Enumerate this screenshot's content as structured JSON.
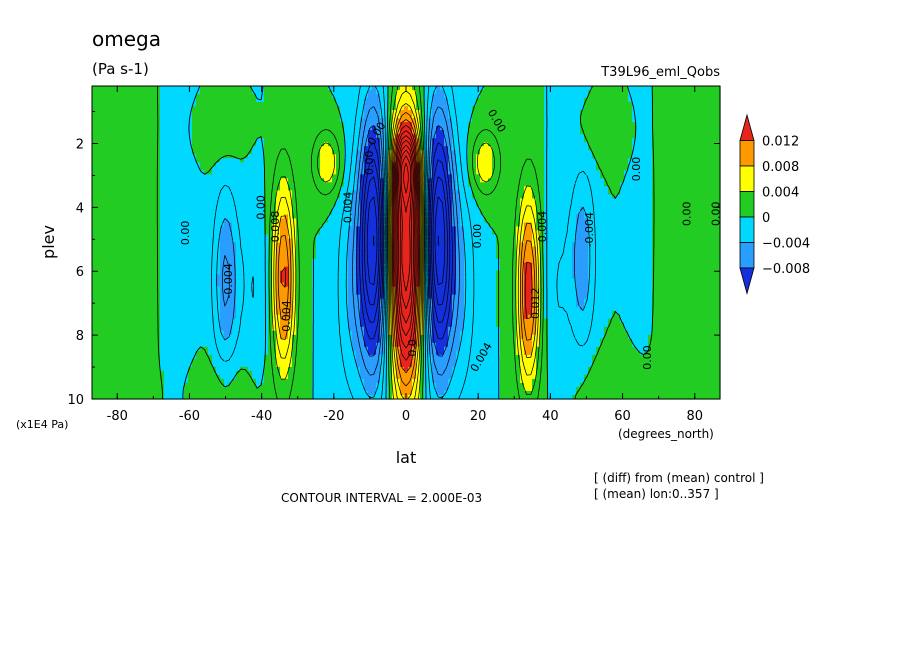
{
  "chart_data": {
    "type": "heatmap",
    "title": "omega",
    "units": "(Pa s-1)",
    "dataset": "T39L96_eml_Qobs",
    "xlabel": "lat",
    "xunits": "(degrees_north)",
    "ylabel": "plev",
    "yunits": "(x1E4 Pa)",
    "xlim": [
      -87,
      87
    ],
    "ylim": [
      0.2,
      10
    ],
    "y_inverted": true,
    "x_ticks": [
      "-80",
      "-60",
      "-40",
      "-20",
      "0",
      "20",
      "40",
      "60",
      "80"
    ],
    "y_ticks": [
      "2",
      "4",
      "6",
      "8",
      "10"
    ],
    "contour_interval_text": "CONTOUR INTERVAL = 2.000E-03",
    "contour_interval": 0.002,
    "notes": [
      "[ (diff) from (mean) control ]",
      "[ (mean) lon:0..357 ]"
    ],
    "colorbar": {
      "labels": [
        "0.012",
        "0.008",
        "0.004",
        "0",
        "−0.004",
        "−0.008"
      ],
      "bands": [
        {
          "min": 0.012,
          "max": null,
          "color": "#e8251c"
        },
        {
          "min": 0.008,
          "max": 0.012,
          "color": "#ff9900"
        },
        {
          "min": 0.004,
          "max": 0.008,
          "color": "#ffff00"
        },
        {
          "min": 0.0,
          "max": 0.004,
          "color": "#22cc22"
        },
        {
          "min": -0.004,
          "max": 0.0,
          "color": "#00d8ff"
        },
        {
          "min": -0.008,
          "max": -0.004,
          "color": "#2a9eff"
        },
        {
          "min": null,
          "max": -0.008,
          "color": "#1430dc"
        }
      ]
    },
    "contour_labels": [
      {
        "lat": -61,
        "plev": 4.8,
        "text": "0.00",
        "rot": -90
      },
      {
        "lat": -49,
        "plev": 6.3,
        "text": "-0.004",
        "rot": -90
      },
      {
        "lat": -40,
        "plev": 4.0,
        "text": "0.00",
        "rot": -90
      },
      {
        "lat": -36,
        "plev": 4.6,
        "text": "0.008",
        "rot": -90
      },
      {
        "lat": -33,
        "plev": 7.4,
        "text": "0.004",
        "rot": -90
      },
      {
        "lat": -16,
        "plev": 4.0,
        "text": "0.004",
        "rot": -90
      },
      {
        "lat": -10,
        "plev": 2.6,
        "text": "0.00",
        "rot": -90
      },
      {
        "lat": -8,
        "plev": 1.7,
        "text": "0.00",
        "rot": -60
      },
      {
        "lat": 2,
        "plev": 8.4,
        "text": "0.0",
        "rot": -90
      },
      {
        "lat": 20,
        "plev": 4.9,
        "text": "0.00",
        "rot": -90
      },
      {
        "lat": 21,
        "plev": 8.7,
        "text": "0.004",
        "rot": -60
      },
      {
        "lat": 25,
        "plev": 1.3,
        "text": "0.00",
        "rot": 60
      },
      {
        "lat": 38,
        "plev": 4.6,
        "text": "0.004",
        "rot": -90
      },
      {
        "lat": 36,
        "plev": 7.0,
        "text": "0.012",
        "rot": -90
      },
      {
        "lat": 51,
        "plev": 4.7,
        "text": "-0.004",
        "rot": -90
      },
      {
        "lat": 64,
        "plev": 2.8,
        "text": "0.00",
        "rot": -90
      },
      {
        "lat": 67,
        "plev": 8.7,
        "text": "0.00",
        "rot": -90
      },
      {
        "lat": 78,
        "plev": 4.2,
        "text": "0.00",
        "rot": -90
      },
      {
        "lat": 86,
        "plev": 4.2,
        "text": "0.00",
        "rot": -90
      }
    ],
    "field_features": [
      {
        "lat": 0,
        "plev": 5.5,
        "amp": 0.026,
        "slat": 4.5,
        "splev": 4.2
      },
      {
        "lat": 0,
        "plev": 2.7,
        "amp": 0.012,
        "slat": 3.5,
        "splev": 1.2
      },
      {
        "lat": -9,
        "plev": 5.0,
        "amp": -0.018,
        "slat": 4.0,
        "splev": 4.0
      },
      {
        "lat": 9,
        "plev": 5.0,
        "amp": -0.018,
        "slat": 4.0,
        "splev": 4.0
      },
      {
        "lat": -15,
        "plev": 6.5,
        "amp": -0.004,
        "slat": 4.5,
        "splev": 3.5
      },
      {
        "lat": 15,
        "plev": 6.5,
        "amp": -0.004,
        "slat": 4.5,
        "splev": 3.5
      },
      {
        "lat": -34,
        "plev": 6.2,
        "amp": 0.0125,
        "slat": 3.2,
        "splev": 3.0
      },
      {
        "lat": 34,
        "plev": 6.6,
        "amp": 0.0135,
        "slat": 3.2,
        "splev": 3.0
      },
      {
        "lat": -22,
        "plev": 2.6,
        "amp": 0.006,
        "slat": 4.0,
        "splev": 1.0
      },
      {
        "lat": 22,
        "plev": 2.6,
        "amp": 0.006,
        "slat": 4.0,
        "splev": 1.0
      },
      {
        "lat": -50,
        "plev": 6.3,
        "amp": -0.0065,
        "slat": 3.5,
        "splev": 2.8
      },
      {
        "lat": 49,
        "plev": 5.6,
        "amp": -0.0055,
        "slat": 3.5,
        "splev": 2.8
      },
      {
        "lat": -42,
        "plev": 6.5,
        "amp": -0.002,
        "slat": 4.0,
        "splev": 3.0
      },
      {
        "lat": 42,
        "plev": 6.5,
        "amp": -0.002,
        "slat": 4.0,
        "splev": 3.0
      },
      {
        "lat": -78,
        "plev": 5.5,
        "amp": 0.0018,
        "slat": 5.0,
        "splev": 4.5
      },
      {
        "lat": 76,
        "plev": 5.5,
        "amp": 0.002,
        "slat": 7.0,
        "splev": 5.0
      },
      {
        "lat": -52,
        "plev": 1.7,
        "amp": 0.0018,
        "slat": 7.0,
        "splev": 0.9
      },
      {
        "lat": 55,
        "plev": 1.7,
        "amp": 0.0015,
        "slat": 7.0,
        "splev": 0.9
      },
      {
        "lat": -50,
        "plev": 9.6,
        "amp": 0.0016,
        "slat": 9.0,
        "splev": 1.0
      },
      {
        "lat": 58,
        "plev": 9.6,
        "amp": 0.0018,
        "slat": 10.0,
        "splev": 1.0
      },
      {
        "lat": -62,
        "plev": 5.0,
        "amp": -0.0012,
        "slat": 4.0,
        "splev": 4.0
      },
      {
        "lat": 66,
        "plev": 5.0,
        "amp": -0.0012,
        "slat": 3.5,
        "splev": 4.0
      }
    ]
  }
}
